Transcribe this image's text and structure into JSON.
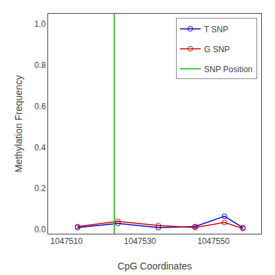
{
  "chart_data": {
    "type": "line",
    "title": "",
    "x_label": "CpG Coordinates",
    "y_label": "Methylation Frequency",
    "x": [
      1047513,
      1047524,
      1047535,
      1047545,
      1047553,
      1047558
    ],
    "series": [
      {
        "name": "T SNP",
        "color": "#0000cc",
        "marker": "circle-open",
        "line_style": "solid",
        "values": [
          0.01,
          0.03,
          0.01,
          0.015,
          0.065,
          0.01
        ]
      },
      {
        "name": "G SNP",
        "color": "#cc0000",
        "marker": "circle-open",
        "line_style": "solid",
        "values": [
          0.015,
          0.04,
          0.02,
          0.01,
          0.035,
          0.005
        ]
      },
      {
        "name": "SNP Position",
        "type": "vline",
        "color": "#00bb00",
        "line_style": "solid",
        "x": [
          1047523
        ]
      }
    ],
    "xlim": [
      1047505,
      1047563
    ],
    "ylim": [
      -0.02,
      1.05
    ],
    "xticks": [
      1047510,
      1047530,
      1047550
    ],
    "yticks": [
      {
        "value": 0.0,
        "label": "0.0"
      },
      0.2,
      0.4,
      0.6,
      0.8,
      {
        "value": 1.0,
        "label": "1.0"
      }
    ],
    "grid": false,
    "legend": "upper right"
  }
}
